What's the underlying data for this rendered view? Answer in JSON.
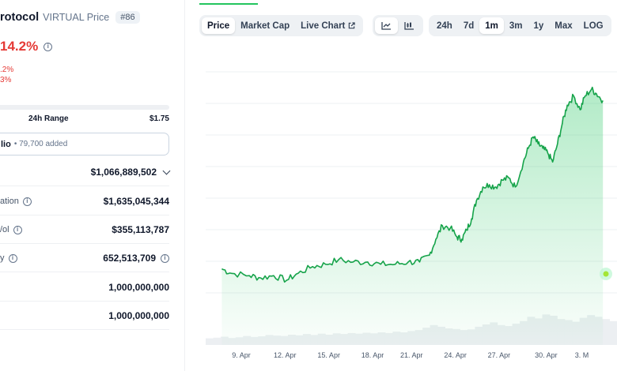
{
  "coin": {
    "name": "rotocol",
    "symbol": "VIRTUAL Price",
    "rank": "#86",
    "change_pct": "14.2%",
    "change_1": ".2%",
    "change_2": "3%"
  },
  "range": {
    "label": "24h Range",
    "high": "$1.75"
  },
  "portfolio": {
    "label": "lio",
    "count": "• 79,700 added"
  },
  "stats": [
    {
      "label": "",
      "value": "$1,066,889,502",
      "has_chevron": true
    },
    {
      "label": "ation",
      "value": "$1,635,045,344",
      "label_info": true
    },
    {
      "label": "/ol",
      "value": "$355,113,787",
      "label_info": true
    },
    {
      "label": "y",
      "value": "652,513,709",
      "label_info": true,
      "value_info": true
    },
    {
      "label": "",
      "value": "1,000,000,000"
    },
    {
      "label": "",
      "value": "1,000,000,000"
    }
  ],
  "tabs": {
    "main": [
      "Price",
      "Market Cap",
      "Live Chart"
    ],
    "active_main": "Price",
    "periods": [
      "24h",
      "7d",
      "1m",
      "3m",
      "1y",
      "Max",
      "LOG"
    ],
    "active_period": "1m",
    "chart_icons": [
      "line-chart-icon",
      "candlestick-chart-icon"
    ]
  },
  "colors": {
    "up": "#16a34a",
    "down": "#e53935",
    "accent": "#22c55e"
  },
  "chart_data": {
    "type": "line",
    "x_tick_labels": [
      "9. Apr",
      "12. Apr",
      "15. Apr",
      "18. Apr",
      "21. Apr",
      "24. Apr",
      "27. Apr",
      "30. Apr",
      "3. M"
    ],
    "x_days": [
      0,
      2.7,
      5.4,
      8.1,
      10.5,
      13.2,
      15.9,
      18.8,
      21.0
    ],
    "price_points": [
      [
        -1.2,
        0.38
      ],
      [
        -0.6,
        0.36
      ],
      [
        0.5,
        0.35
      ],
      [
        1.2,
        0.34
      ],
      [
        2.0,
        0.35
      ],
      [
        2.8,
        0.33
      ],
      [
        3.5,
        0.36
      ],
      [
        4.4,
        0.39
      ],
      [
        5.2,
        0.4
      ],
      [
        6.0,
        0.42
      ],
      [
        6.9,
        0.41
      ],
      [
        7.8,
        0.41
      ],
      [
        8.6,
        0.4
      ],
      [
        9.5,
        0.4
      ],
      [
        10.3,
        0.41
      ],
      [
        11.0,
        0.41
      ],
      [
        11.6,
        0.44
      ],
      [
        12.0,
        0.51
      ],
      [
        12.4,
        0.57
      ],
      [
        12.9,
        0.56
      ],
      [
        13.3,
        0.52
      ],
      [
        13.6,
        0.51
      ],
      [
        13.9,
        0.55
      ],
      [
        14.2,
        0.6
      ],
      [
        14.5,
        0.68
      ],
      [
        14.9,
        0.74
      ],
      [
        15.3,
        0.75
      ],
      [
        15.7,
        0.74
      ],
      [
        16.1,
        0.77
      ],
      [
        16.5,
        0.78
      ],
      [
        16.9,
        0.74
      ],
      [
        17.4,
        0.85
      ],
      [
        17.7,
        0.91
      ],
      [
        18.0,
        0.96
      ],
      [
        18.3,
        0.93
      ],
      [
        18.6,
        0.91
      ],
      [
        18.9,
        0.89
      ],
      [
        19.2,
        0.85
      ],
      [
        19.5,
        0.93
      ],
      [
        19.8,
        1.02
      ],
      [
        20.1,
        1.1
      ],
      [
        20.5,
        1.14
      ],
      [
        20.9,
        1.08
      ],
      [
        21.2,
        1.14
      ],
      [
        21.6,
        1.17
      ],
      [
        21.9,
        1.15
      ],
      [
        22.3,
        1.12
      ]
    ],
    "volume_levels": [
      0.2,
      0.22,
      0.25,
      0.21,
      0.23,
      0.27,
      0.24,
      0.26,
      0.3,
      0.28,
      0.27,
      0.31,
      0.29,
      0.33,
      0.3,
      0.34,
      0.31,
      0.35,
      0.33,
      0.36,
      0.34,
      0.37,
      0.35,
      0.38,
      0.36,
      0.4,
      0.38,
      0.42,
      0.45,
      0.52,
      0.6,
      0.55,
      0.5,
      0.48,
      0.45,
      0.47,
      0.55,
      0.62,
      0.68,
      0.6,
      0.57,
      0.64,
      0.72,
      0.85,
      0.8,
      0.92,
      0.88,
      0.78,
      0.75,
      0.7,
      0.82,
      0.9,
      0.85,
      0.78,
      0.72
    ],
    "grid": true,
    "legend": "none"
  }
}
